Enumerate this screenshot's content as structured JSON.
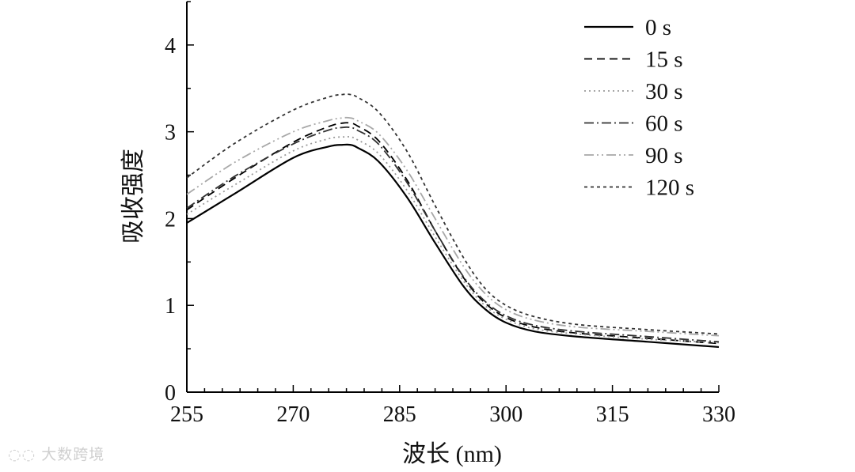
{
  "watermark": "大数跨境",
  "chart_data": {
    "type": "line",
    "xlabel": "波长 (nm)",
    "ylabel": "吸收强度",
    "xlim": [
      255,
      330
    ],
    "ylim": [
      0,
      4.5
    ],
    "xticks": [
      255,
      270,
      285,
      300,
      315,
      330
    ],
    "yticks": [
      0,
      1,
      2,
      3,
      4
    ],
    "legend_position": "top-right",
    "series": [
      {
        "name": "0 s",
        "style": "solid",
        "color": "#000000",
        "x": [
          255,
          262,
          270,
          275,
          277,
          278,
          279,
          282,
          286,
          290,
          294,
          297,
          300,
          304,
          310,
          320,
          330
        ],
        "y": [
          1.95,
          2.3,
          2.7,
          2.83,
          2.85,
          2.85,
          2.82,
          2.66,
          2.25,
          1.72,
          1.22,
          0.96,
          0.8,
          0.7,
          0.64,
          0.58,
          0.52
        ]
      },
      {
        "name": "15 s",
        "style": "dashed",
        "color": "#000000",
        "x": [
          255,
          262,
          270,
          275,
          277,
          278,
          279,
          282,
          286,
          290,
          294,
          297,
          300,
          304,
          310,
          320,
          330
        ],
        "y": [
          2.1,
          2.48,
          2.88,
          3.06,
          3.1,
          3.1,
          3.07,
          2.9,
          2.45,
          1.86,
          1.32,
          1.03,
          0.86,
          0.75,
          0.68,
          0.62,
          0.56
        ]
      },
      {
        "name": "30 s",
        "style": "dotted",
        "color": "#9a9a9a",
        "x": [
          255,
          262,
          270,
          275,
          277,
          278,
          279,
          282,
          286,
          290,
          294,
          297,
          300,
          304,
          310,
          320,
          330
        ],
        "y": [
          2.05,
          2.4,
          2.78,
          2.92,
          2.94,
          2.94,
          2.91,
          2.75,
          2.33,
          1.79,
          1.28,
          1.0,
          0.84,
          0.73,
          0.67,
          0.61,
          0.57
        ]
      },
      {
        "name": "60 s",
        "style": "dashdot",
        "color": "#333333",
        "x": [
          255,
          262,
          270,
          275,
          277,
          278,
          279,
          282,
          286,
          290,
          294,
          297,
          300,
          304,
          310,
          320,
          330
        ],
        "y": [
          2.12,
          2.5,
          2.86,
          3.02,
          3.05,
          3.05,
          3.02,
          2.86,
          2.42,
          1.86,
          1.33,
          1.05,
          0.88,
          0.77,
          0.7,
          0.64,
          0.58
        ]
      },
      {
        "name": "90 s",
        "style": "dashdotdot",
        "color": "#a8a8a8",
        "x": [
          255,
          262,
          270,
          275,
          277,
          278,
          279,
          282,
          286,
          290,
          294,
          297,
          300,
          304,
          310,
          320,
          330
        ],
        "y": [
          2.28,
          2.66,
          3.0,
          3.13,
          3.16,
          3.16,
          3.13,
          2.98,
          2.56,
          2.0,
          1.45,
          1.14,
          0.95,
          0.83,
          0.75,
          0.7,
          0.65
        ]
      },
      {
        "name": "120 s",
        "style": "shortdash",
        "color": "#333333",
        "x": [
          255,
          262,
          270,
          275,
          277,
          278,
          279,
          282,
          286,
          290,
          294,
          297,
          300,
          304,
          310,
          320,
          330
        ],
        "y": [
          2.47,
          2.88,
          3.25,
          3.4,
          3.43,
          3.43,
          3.4,
          3.23,
          2.78,
          2.15,
          1.55,
          1.2,
          1.0,
          0.87,
          0.78,
          0.72,
          0.67
        ]
      }
    ]
  }
}
